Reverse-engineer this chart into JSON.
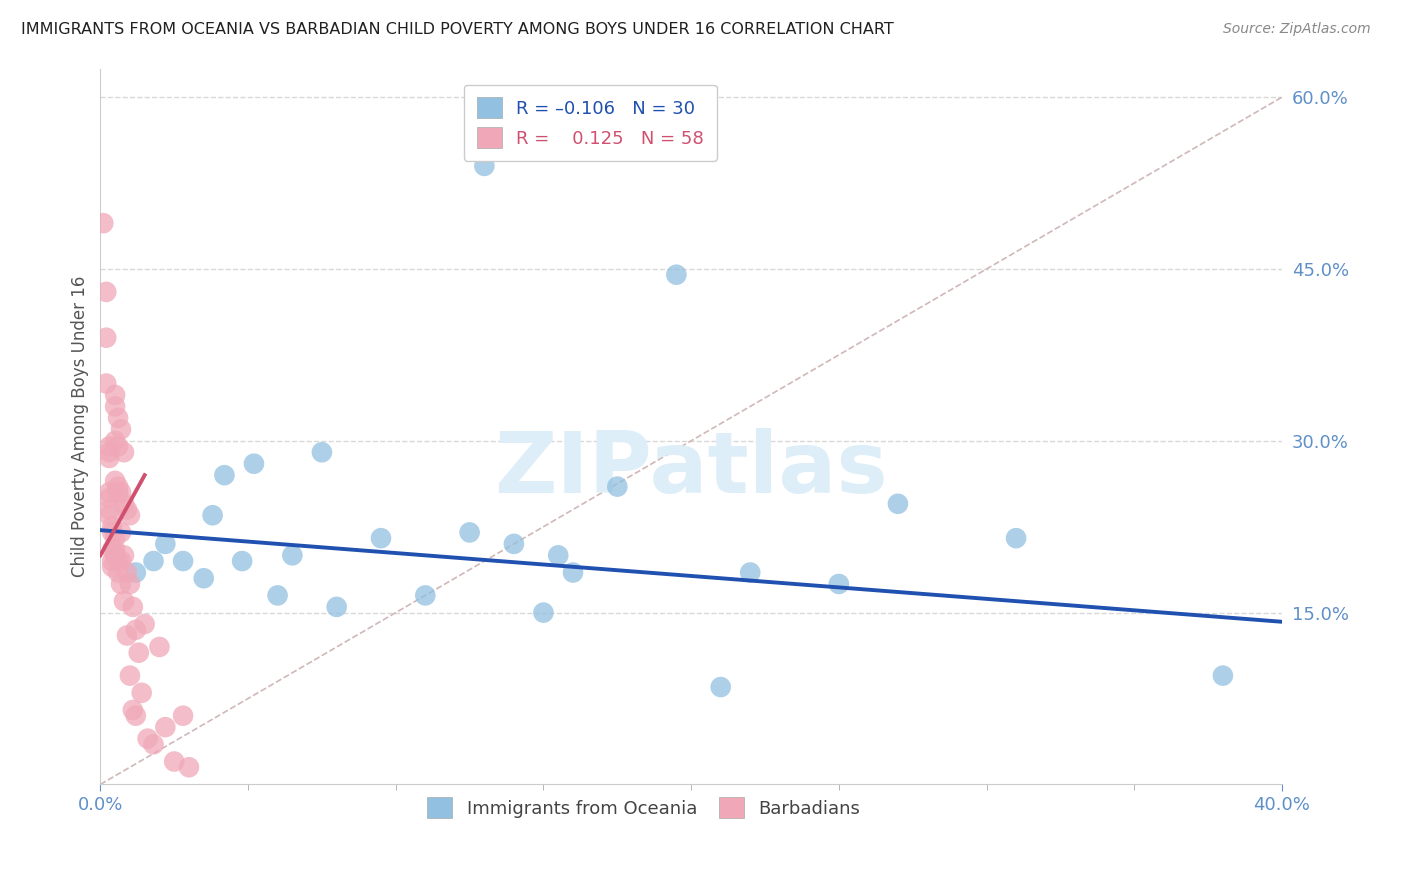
{
  "title": "IMMIGRANTS FROM OCEANIA VS BARBADIAN CHILD POVERTY AMONG BOYS UNDER 16 CORRELATION CHART",
  "source": "Source: ZipAtlas.com",
  "ylabel": "Child Poverty Among Boys Under 16",
  "x_min": 0.0,
  "x_max": 0.4,
  "y_min": 0.0,
  "y_max": 0.625,
  "x_tick_positions": [
    0.0,
    0.4
  ],
  "x_tick_labels": [
    "0.0%",
    "40.0%"
  ],
  "y_ticks_right": [
    0.15,
    0.3,
    0.45,
    0.6
  ],
  "y_tick_labels_right": [
    "15.0%",
    "30.0%",
    "45.0%",
    "60.0%"
  ],
  "blue_color": "#92c0e0",
  "pink_color": "#f0a8b8",
  "blue_line_color": "#2050b0",
  "pink_line_color": "#d05070",
  "diag_line_color": "#d0b8b8",
  "grid_color": "#d8d8d8",
  "axis_label_color": "#6090c8",
  "title_color": "#202020",
  "watermark_color": "#ddeef8",
  "blue_scatter_x": [
    0.005,
    0.012,
    0.018,
    0.022,
    0.028,
    0.035,
    0.038,
    0.042,
    0.048,
    0.052,
    0.06,
    0.065,
    0.075,
    0.08,
    0.095,
    0.11,
    0.125,
    0.13,
    0.14,
    0.15,
    0.155,
    0.16,
    0.175,
    0.195,
    0.21,
    0.22,
    0.25,
    0.27,
    0.31,
    0.38
  ],
  "blue_scatter_y": [
    0.2,
    0.185,
    0.195,
    0.21,
    0.195,
    0.18,
    0.235,
    0.27,
    0.195,
    0.28,
    0.165,
    0.2,
    0.29,
    0.155,
    0.215,
    0.165,
    0.22,
    0.54,
    0.21,
    0.15,
    0.2,
    0.185,
    0.26,
    0.445,
    0.085,
    0.185,
    0.175,
    0.245,
    0.215,
    0.095
  ],
  "pink_scatter_x": [
    0.001,
    0.002,
    0.002,
    0.002,
    0.003,
    0.003,
    0.003,
    0.003,
    0.003,
    0.003,
    0.003,
    0.004,
    0.004,
    0.004,
    0.004,
    0.004,
    0.005,
    0.005,
    0.005,
    0.005,
    0.005,
    0.005,
    0.005,
    0.006,
    0.006,
    0.006,
    0.006,
    0.006,
    0.006,
    0.007,
    0.007,
    0.007,
    0.007,
    0.007,
    0.008,
    0.008,
    0.008,
    0.008,
    0.009,
    0.009,
    0.009,
    0.01,
    0.01,
    0.01,
    0.011,
    0.011,
    0.012,
    0.012,
    0.013,
    0.014,
    0.015,
    0.016,
    0.018,
    0.02,
    0.022,
    0.025,
    0.028,
    0.03
  ],
  "pink_scatter_y": [
    0.49,
    0.43,
    0.39,
    0.35,
    0.29,
    0.295,
    0.285,
    0.255,
    0.25,
    0.24,
    0.235,
    0.225,
    0.22,
    0.205,
    0.195,
    0.19,
    0.34,
    0.33,
    0.3,
    0.265,
    0.215,
    0.205,
    0.2,
    0.32,
    0.295,
    0.26,
    0.255,
    0.195,
    0.185,
    0.31,
    0.255,
    0.22,
    0.195,
    0.175,
    0.29,
    0.245,
    0.2,
    0.16,
    0.24,
    0.185,
    0.13,
    0.235,
    0.175,
    0.095,
    0.155,
    0.065,
    0.135,
    0.06,
    0.115,
    0.08,
    0.14,
    0.04,
    0.035,
    0.12,
    0.05,
    0.02,
    0.06,
    0.015
  ],
  "blue_trend_x": [
    0.0,
    0.4
  ],
  "blue_trend_y": [
    0.222,
    0.142
  ],
  "pink_trend_x": [
    0.0,
    0.015
  ],
  "pink_trend_y": [
    0.2,
    0.27
  ],
  "diag_line_x": [
    0.0,
    0.4
  ],
  "diag_line_y": [
    0.0,
    0.6
  ]
}
